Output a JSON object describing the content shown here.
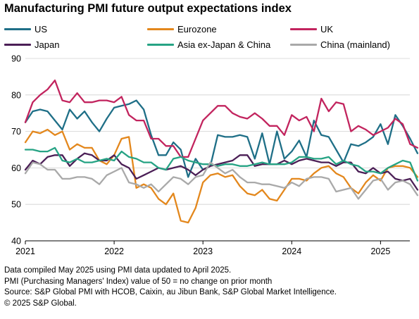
{
  "chart_data": {
    "type": "line",
    "title": "Manufacturing PMI future output expectations index",
    "xlabel": "",
    "ylabel": "",
    "ylim": [
      40,
      90
    ],
    "yticks": [
      40,
      50,
      60,
      70,
      80,
      90
    ],
    "xlim": [
      2021.0,
      2025.33
    ],
    "xticks": [
      {
        "v": 2021,
        "label": "2021"
      },
      {
        "v": 2022,
        "label": "2022"
      },
      {
        "v": 2023,
        "label": "2023"
      },
      {
        "v": 2024,
        "label": "2024"
      },
      {
        "v": 2025,
        "label": "2025"
      }
    ],
    "x_start": "2021-01",
    "x_end": "2025-04",
    "grid": "horizontal",
    "legend_position": "top",
    "series": [
      {
        "name": "US",
        "color": "#1f6f87",
        "values": [
          72.5,
          75.5,
          76,
          75.5,
          73,
          70.5,
          76,
          73.5,
          75.5,
          72.5,
          70,
          73.5,
          76.5,
          77,
          77.5,
          78.5,
          76,
          69,
          63.5,
          63.5,
          67,
          65,
          57.5,
          62.5,
          59.5,
          60.5,
          69,
          68.5,
          68.5,
          69,
          68.5,
          62.5,
          69.5,
          61,
          70,
          62.5,
          64.5,
          67.5,
          63,
          73,
          69,
          68.5,
          65,
          61.5,
          66.5,
          66,
          67,
          68.5,
          72,
          66.5,
          74.5,
          71.5,
          68,
          64
        ]
      },
      {
        "name": "Eurozone",
        "color": "#e3871c",
        "values": [
          67,
          70,
          69.5,
          70.5,
          69,
          70,
          65,
          66.5,
          65.5,
          65.5,
          62,
          61,
          63.5,
          68,
          68.5,
          54.5,
          55.5,
          54.5,
          51.5,
          50,
          53,
          45.5,
          45,
          49,
          56,
          58,
          58.5,
          57.5,
          58,
          55,
          53,
          52.5,
          54,
          51.5,
          51,
          54,
          57,
          57,
          56.5,
          58.5,
          60,
          60.5,
          58.5,
          57.5,
          54.5,
          53,
          56,
          58,
          56.5,
          60,
          60.5,
          60.5,
          60,
          57.5
        ]
      },
      {
        "name": "UK",
        "color": "#c2245e",
        "values": [
          72.5,
          78,
          80,
          81.5,
          84,
          78.5,
          78,
          80.5,
          78,
          78,
          78.5,
          78.5,
          78,
          79.5,
          74.5,
          73,
          73,
          68,
          68,
          66,
          66,
          63,
          63,
          68,
          73,
          75,
          77,
          77,
          75,
          74,
          73.5,
          75,
          73.5,
          71.5,
          71.5,
          69,
          74.5,
          73,
          74,
          70,
          79,
          75.5,
          78,
          77.5,
          70,
          71.5,
          70.5,
          69,
          70,
          71,
          73.5,
          72,
          66.5,
          65.5
        ]
      },
      {
        "name": "Japan",
        "color": "#4b1f56",
        "values": [
          59.5,
          62,
          61,
          63,
          63.5,
          63.5,
          60.5,
          62.5,
          64,
          63.5,
          62,
          62,
          63.5,
          61,
          60,
          57,
          58,
          59,
          60,
          59.5,
          60,
          60.5,
          59.5,
          58,
          59.5,
          60.5,
          61,
          61.5,
          62,
          63.5,
          63.5,
          60.5,
          61,
          61,
          61,
          62,
          61,
          62,
          62.5,
          62,
          61.5,
          61.5,
          60.5,
          61.5,
          61.5,
          59,
          58.5,
          60,
          58.5,
          59,
          57,
          56.5,
          57,
          54
        ]
      },
      {
        "name": "Asia ex-Japan & China",
        "color": "#26a384",
        "values": [
          65,
          65,
          64.5,
          64.5,
          65.5,
          62,
          61.5,
          62.5,
          61.5,
          61.5,
          62,
          62.5,
          62,
          64.5,
          63,
          62.5,
          61.5,
          61.5,
          60,
          59.5,
          62.5,
          63,
          62,
          61.5,
          61,
          61,
          60.5,
          61,
          61,
          60.5,
          60.5,
          61,
          61.5,
          61,
          61,
          61,
          61.5,
          63,
          63,
          62.5,
          62.5,
          63,
          61,
          62,
          61,
          60.5,
          59,
          59,
          58.5,
          60,
          61,
          62,
          61.5,
          56.5
        ]
      },
      {
        "name": "China (mainland)",
        "color": "#a9a9a9",
        "values": [
          58.5,
          61.5,
          61,
          59.5,
          59.5,
          57,
          57,
          57.5,
          57.5,
          57,
          55.5,
          58,
          59,
          60,
          56,
          55.5,
          54.5,
          55.5,
          53.5,
          55.5,
          57.5,
          57,
          55.5,
          57.5,
          58,
          61.5,
          60,
          58.5,
          59.5,
          57.5,
          56,
          56,
          55.5,
          55.5,
          55,
          54.5,
          56,
          55,
          57,
          57.5,
          57.5,
          57,
          53.5,
          54,
          54.5,
          51.5,
          54,
          56.5,
          57,
          54,
          56,
          56.5,
          55.5,
          52.5
        ]
      }
    ]
  },
  "legend": {
    "items": [
      {
        "label": "US",
        "color": "#1f6f87"
      },
      {
        "label": "Eurozone",
        "color": "#e3871c"
      },
      {
        "label": "UK",
        "color": "#c2245e"
      },
      {
        "label": "Japan",
        "color": "#4b1f56"
      },
      {
        "label": "Asia ex-Japan & China",
        "color": "#26a384"
      },
      {
        "label": "China (mainland)",
        "color": "#a9a9a9"
      }
    ]
  },
  "notes": [
    "Data compiled May 2025 using PMI data updated to April 2025.",
    "PMI (Purchasing Managers' Index) value of 50 = no change on prior month",
    "Source: S&P Global PMI with HCOB, Caixin, au Jibun Bank, S&P Global Market Intelligence.",
    "© 2025 S&P Global."
  ]
}
